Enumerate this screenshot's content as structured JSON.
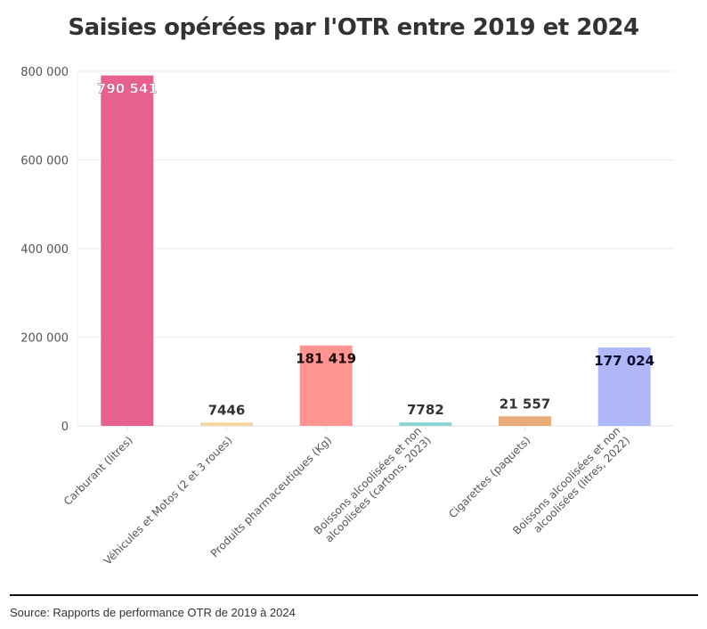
{
  "chart_data": {
    "type": "bar",
    "title": "Saisies opérées par l'OTR entre 2019 et 2024",
    "xlabel": "",
    "ylabel": "",
    "ylim": [
      0,
      800000
    ],
    "yticks": [
      0,
      200000,
      400000,
      600000,
      800000
    ],
    "ytick_labels": [
      "0",
      "200 000",
      "400 000",
      "600 000",
      "800 000"
    ],
    "grid": true,
    "categories": [
      [
        "Carburant (litres)"
      ],
      [
        "Véhicules et Motos (2 et 3 roues)"
      ],
      [
        "Produits pharmaceutiques (Kg)"
      ],
      [
        "Boissons alcoolisées et non",
        "alcoolisées (cartons, 2023)"
      ],
      [
        "Cigarettes (paquets)"
      ],
      [
        "Boissons alcoolisées et non",
        "alcoolisées (litres, 2022)"
      ]
    ],
    "values": [
      790541,
      7446,
      181419,
      7782,
      21557,
      177024
    ],
    "value_labels": [
      "790 541",
      "7446",
      "181 419",
      "7782",
      "21 557",
      "177 024"
    ],
    "colors": [
      "#e8608c",
      "#f5d5a0",
      "#ff9490",
      "#8ad5d5",
      "#e8ac78",
      "#b0b8fa"
    ],
    "label_colors": [
      "#ffffff",
      "#333333",
      "#1a0a0a",
      "#333333",
      "#333333",
      "#0a0a2a"
    ],
    "legend": "none"
  },
  "footer": {
    "source": "Source: Rapports de performance OTR de 2019 à 2024"
  }
}
